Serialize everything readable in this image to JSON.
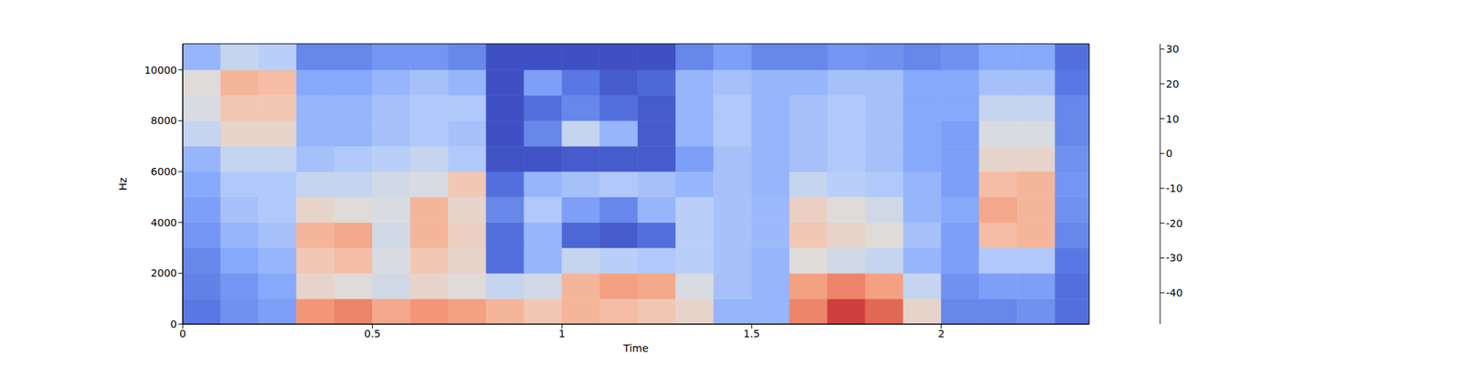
{
  "chart_data": {
    "type": "heatmap",
    "xlabel": "Time",
    "ylabel": "Hz",
    "xlim": [
      0,
      2.39
    ],
    "xticks": [
      0,
      0.5,
      1,
      1.5,
      2
    ],
    "ylim": [
      0,
      11025
    ],
    "yticks": [
      0,
      2000,
      4000,
      6000,
      8000,
      10000
    ],
    "x_edges": [
      0,
      0.1,
      0.2,
      0.3,
      0.4,
      0.5,
      0.6,
      0.7,
      0.8,
      0.9,
      1.0,
      1.1,
      1.2,
      1.3,
      1.4,
      1.5,
      1.6,
      1.7,
      1.8,
      1.9,
      2.0,
      2.1,
      2.2,
      2.3,
      2.39
    ],
    "y_edges": [
      0,
      1000,
      2000,
      3000,
      4000,
      5000,
      6000,
      7000,
      8000,
      9000,
      10000,
      11025
    ],
    "cells": [
      [
        -38,
        -33,
        -30,
        12,
        15,
        8,
        12,
        10,
        5,
        0,
        5,
        3,
        0,
        -5,
        -25,
        -25,
        15,
        25,
        20,
        -5,
        -35,
        -35,
        -33,
        -40
      ],
      [
        -36,
        -32,
        -28,
        -5,
        -8,
        -12,
        -5,
        -8,
        -15,
        -12,
        5,
        10,
        8,
        -10,
        -22,
        -25,
        10,
        15,
        10,
        -15,
        -33,
        -30,
        -30,
        -40
      ],
      [
        -35,
        -28,
        -25,
        0,
        3,
        -10,
        0,
        -5,
        -40,
        -25,
        -15,
        -18,
        -20,
        -18,
        -22,
        -25,
        -8,
        -12,
        -15,
        -25,
        -30,
        -20,
        -20,
        -38
      ],
      [
        -32,
        -25,
        -22,
        5,
        8,
        -12,
        5,
        -3,
        -40,
        -25,
        -42,
        -45,
        -40,
        -18,
        -22,
        -24,
        0,
        -5,
        -8,
        -22,
        -30,
        3,
        5,
        -35
      ],
      [
        -30,
        -22,
        -20,
        -5,
        -8,
        -10,
        5,
        -5,
        -35,
        -20,
        -30,
        -35,
        -25,
        -18,
        -22,
        -24,
        -3,
        -8,
        -12,
        -25,
        -28,
        8,
        5,
        -33
      ],
      [
        -28,
        -20,
        -20,
        -15,
        -15,
        -12,
        -10,
        0,
        -40,
        -25,
        -22,
        -20,
        -22,
        -25,
        -22,
        -25,
        -15,
        -18,
        -20,
        -25,
        -30,
        3,
        5,
        -32
      ],
      [
        -25,
        -15,
        -15,
        -22,
        -20,
        -18,
        -15,
        -20,
        -47,
        -47,
        -45,
        -45,
        -45,
        -30,
        -22,
        -25,
        -22,
        -20,
        -22,
        -28,
        -30,
        -5,
        -5,
        -33
      ],
      [
        -15,
        -5,
        -5,
        -25,
        -25,
        -22,
        -20,
        -22,
        -48,
        -35,
        -15,
        -25,
        -45,
        -25,
        -20,
        -25,
        -22,
        -20,
        -22,
        -28,
        -30,
        -10,
        -10,
        -35
      ],
      [
        -10,
        0,
        0,
        -25,
        -25,
        -22,
        -20,
        -20,
        -48,
        -40,
        -35,
        -40,
        -45,
        -25,
        -20,
        -25,
        -22,
        -20,
        -22,
        -28,
        -28,
        -15,
        -15,
        -35
      ],
      [
        -8,
        5,
        3,
        -28,
        -28,
        -25,
        -22,
        -25,
        -48,
        -30,
        -38,
        -45,
        -42,
        -25,
        -22,
        -25,
        -25,
        -22,
        -22,
        -28,
        -28,
        -22,
        -22,
        -38
      ],
      [
        -25,
        -15,
        -18,
        -35,
        -35,
        -32,
        -32,
        -35,
        -48,
        -48,
        -48,
        -48,
        -48,
        -35,
        -30,
        -35,
        -35,
        -32,
        -33,
        -35,
        -33,
        -28,
        -28,
        -40
      ]
    ],
    "colorbar_lim": [
      -49,
      31.5
    ],
    "colorbar_ticks": [
      -40,
      -30,
      -20,
      -10,
      0,
      10,
      20,
      30
    ]
  }
}
